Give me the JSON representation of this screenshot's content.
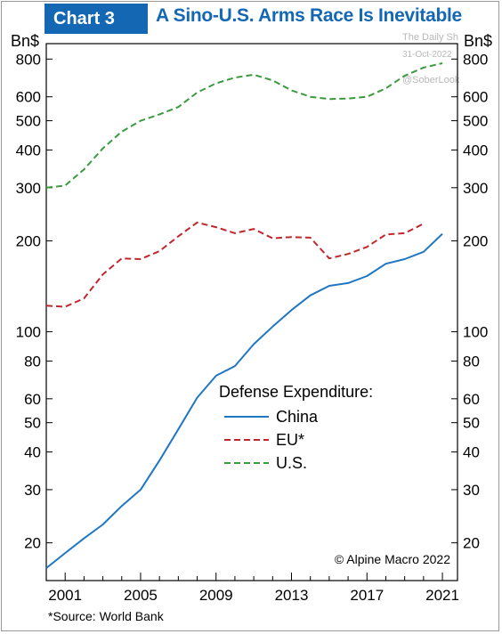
{
  "header": {
    "badge": "Chart 3",
    "title": "A Sino-U.S. Arms Race Is Inevitable"
  },
  "watermark": {
    "line1": "The Daily Sh",
    "line2": "31-Oct-2022",
    "line3": "@SoberLook"
  },
  "footer": {
    "source": "*Source: World Bank",
    "copyright": "© Alpine Macro 2022"
  },
  "chart_data": {
    "type": "line",
    "y_scale": "log",
    "ylim": [
      15,
      900
    ],
    "xlim": [
      2000,
      2021.8
    ],
    "ylabel_left": "Bn$",
    "ylabel_right": "Bn$",
    "yticks": [
      20,
      30,
      40,
      50,
      60,
      80,
      100,
      200,
      300,
      400,
      500,
      600,
      800
    ],
    "xticks": [
      2001,
      2005,
      2009,
      2013,
      2017,
      2021
    ],
    "legend_title": "Defense Expenditure:",
    "legend_position": "lower-right",
    "series": [
      {
        "name": "China",
        "color": "#1f77c4",
        "dash": "solid",
        "x": [
          2000,
          2001,
          2002,
          2003,
          2004,
          2005,
          2006,
          2007,
          2008,
          2009,
          2010,
          2011,
          2012,
          2013,
          2014,
          2015,
          2016,
          2017,
          2018,
          2019,
          2020,
          2021
        ],
        "values": [
          16.5,
          18.5,
          20.7,
          23.0,
          26.5,
          30.0,
          37.5,
          47.5,
          60.5,
          71.5,
          77.0,
          91.0,
          104.0,
          118.0,
          132.0,
          142.0,
          145.0,
          153.0,
          168.0,
          174.0,
          184.0,
          211.0
        ]
      },
      {
        "name": "EU*",
        "color": "#c0272d",
        "dash": "dashed",
        "x": [
          2000,
          2001,
          2002,
          2003,
          2004,
          2005,
          2006,
          2007,
          2008,
          2009,
          2010,
          2011,
          2012,
          2013,
          2014,
          2015,
          2016,
          2017,
          2018,
          2019,
          2020
        ],
        "values": [
          122,
          121,
          129,
          155,
          175,
          174,
          185,
          207,
          230,
          222,
          212,
          219,
          204,
          206,
          205,
          175,
          181,
          191,
          210,
          212,
          228
        ]
      },
      {
        "name": "U.S.",
        "color": "#3a9a3e",
        "dash": "dashed",
        "x": [
          2000,
          2001,
          2002,
          2003,
          2004,
          2005,
          2006,
          2007,
          2008,
          2009,
          2010,
          2011,
          2012,
          2013,
          2014,
          2015,
          2016,
          2017,
          2018,
          2019,
          2020,
          2021
        ],
        "values": [
          300,
          305,
          345,
          405,
          460,
          500,
          525,
          555,
          620,
          665,
          695,
          710,
          680,
          630,
          600,
          590,
          592,
          600,
          640,
          705,
          750,
          775
        ]
      }
    ]
  }
}
